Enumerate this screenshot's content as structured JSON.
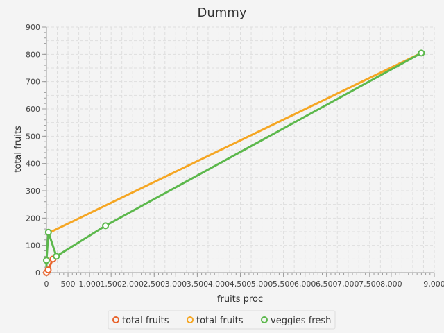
{
  "chart_data": {
    "type": "line",
    "title": "Dummy",
    "xlabel": "fruits proc",
    "ylabel": "total fruits",
    "xlim": [
      0,
      9000
    ],
    "ylim": [
      0,
      900
    ],
    "x_ticks": [
      0,
      500,
      1000,
      1500,
      2000,
      2500,
      3000,
      3500,
      4000,
      4500,
      5000,
      5500,
      6000,
      6500,
      7000,
      7500,
      8000,
      9000
    ],
    "x_tick_labels": [
      "0",
      "500",
      "1,000",
      "1,500",
      "2,000",
      "2,500",
      "3,000",
      "3,500",
      "4,000",
      "4,500",
      "5,000",
      "5,500",
      "6,000",
      "6,500",
      "7,000",
      "7,500",
      "8,000",
      "9,000"
    ],
    "y_ticks": [
      0,
      100,
      200,
      300,
      400,
      500,
      600,
      700,
      800,
      900
    ],
    "y_tick_labels": [
      "0",
      "100",
      "200",
      "300",
      "400",
      "500",
      "600",
      "700",
      "800",
      "900"
    ],
    "grid": true,
    "legend_position": "bottom",
    "series": [
      {
        "name": "total fruits",
        "color": "#e8632b",
        "x": [
          0,
          40,
          150
        ],
        "y": [
          0,
          10,
          50
        ]
      },
      {
        "name": "total fruits",
        "color": "#f5a623",
        "x": [
          45,
          8700
        ],
        "y": [
          145,
          805
        ]
      },
      {
        "name": "veggies fresh",
        "color": "#5cb84c",
        "x": [
          0,
          0,
          0,
          45,
          230,
          1370,
          8700
        ],
        "y": [
          0,
          25,
          45,
          148,
          60,
          172,
          805
        ],
        "markers": [
          false,
          false,
          true,
          true,
          true,
          true,
          true
        ]
      }
    ]
  }
}
